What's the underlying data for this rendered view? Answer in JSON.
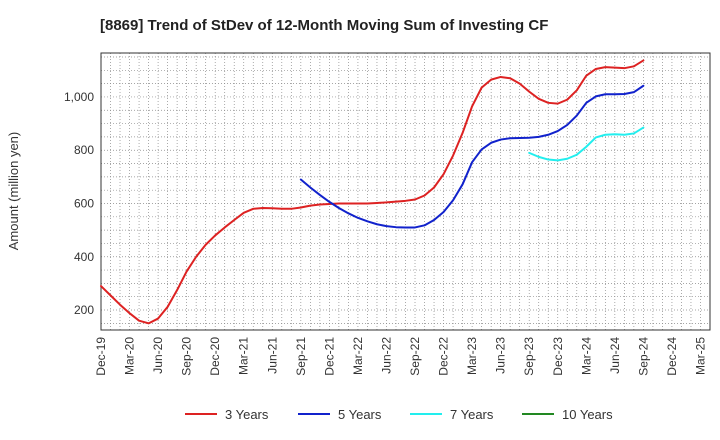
{
  "chart_data": {
    "type": "line",
    "title": "[8869]  Trend of StDev of 12-Month Moving Sum of Investing CF",
    "xlabel": "",
    "ylabel": "Amount (million yen)",
    "ylim": [
      125,
      1165
    ],
    "yticks": [
      200,
      400,
      600,
      800,
      1000
    ],
    "ytick_labels": [
      "200",
      "400",
      "600",
      "800",
      "1,000"
    ],
    "xticks": [
      "2019-12",
      "2020-03",
      "2020-06",
      "2020-09",
      "2020-12",
      "2021-03",
      "2021-06",
      "2021-09",
      "2021-12",
      "2022-03",
      "2022-06",
      "2022-09",
      "2022-12",
      "2023-03",
      "2023-06",
      "2023-09",
      "2023-12",
      "2024-03",
      "2024-06",
      "2024-09",
      "2024-12",
      "2025-03"
    ],
    "xtick_labels": [
      "Dec-19",
      "Mar-20",
      "Jun-20",
      "Sep-20",
      "Dec-20",
      "Mar-21",
      "Jun-21",
      "Sep-21",
      "Dec-21",
      "Mar-22",
      "Jun-22",
      "Sep-22",
      "Dec-22",
      "Mar-23",
      "Jun-23",
      "Sep-23",
      "Dec-23",
      "Mar-24",
      "Jun-24",
      "Sep-24",
      "Dec-24",
      "Mar-25"
    ],
    "grid": true,
    "legend_position": "bottom",
    "series": [
      {
        "name": "3 Years",
        "color": "#dd2222",
        "x": [
          "2019-12",
          "2020-01",
          "2020-02",
          "2020-03",
          "2020-04",
          "2020-05",
          "2020-06",
          "2020-07",
          "2020-08",
          "2020-09",
          "2020-10",
          "2020-11",
          "2020-12",
          "2021-01",
          "2021-02",
          "2021-03",
          "2021-04",
          "2021-05",
          "2021-06",
          "2021-07",
          "2021-08",
          "2021-09",
          "2021-10",
          "2021-11",
          "2021-12",
          "2022-01",
          "2022-02",
          "2022-03",
          "2022-04",
          "2022-05",
          "2022-06",
          "2022-07",
          "2022-08",
          "2022-09",
          "2022-10",
          "2022-11",
          "2022-12",
          "2023-01",
          "2023-02",
          "2023-03",
          "2023-04",
          "2023-05",
          "2023-06",
          "2023-07",
          "2023-08",
          "2023-09",
          "2023-10",
          "2023-11",
          "2023-12",
          "2024-01",
          "2024-02",
          "2024-03",
          "2024-04",
          "2024-05",
          "2024-06",
          "2024-07",
          "2024-08",
          "2024-09"
        ],
        "values": [
          290,
          255,
          220,
          188,
          160,
          150,
          168,
          212,
          275,
          345,
          400,
          445,
          480,
          510,
          538,
          565,
          580,
          583,
          582,
          580,
          580,
          585,
          592,
          596,
          598,
          600,
          600,
          600,
          600,
          602,
          604,
          607,
          610,
          615,
          630,
          660,
          710,
          780,
          865,
          965,
          1035,
          1065,
          1075,
          1070,
          1050,
          1020,
          993,
          978,
          975,
          990,
          1025,
          1080,
          1105,
          1112,
          1110,
          1108,
          1115,
          1137
        ]
      },
      {
        "name": "5 Years",
        "color": "#1122cc",
        "x": [
          "2021-09",
          "2021-10",
          "2021-11",
          "2021-12",
          "2022-01",
          "2022-02",
          "2022-03",
          "2022-04",
          "2022-05",
          "2022-06",
          "2022-07",
          "2022-08",
          "2022-09",
          "2022-10",
          "2022-11",
          "2022-12",
          "2023-01",
          "2023-02",
          "2023-03",
          "2023-04",
          "2023-05",
          "2023-06",
          "2023-07",
          "2023-08",
          "2023-09",
          "2023-10",
          "2023-11",
          "2023-12",
          "2024-01",
          "2024-02",
          "2024-03",
          "2024-04",
          "2024-05",
          "2024-06",
          "2024-07",
          "2024-08",
          "2024-09"
        ],
        "values": [
          690,
          660,
          632,
          606,
          583,
          563,
          546,
          533,
          522,
          515,
          511,
          510,
          510,
          518,
          538,
          568,
          612,
          672,
          755,
          803,
          828,
          840,
          845,
          846,
          847,
          850,
          858,
          872,
          895,
          930,
          978,
          1002,
          1010,
          1010,
          1011,
          1018,
          1042
        ]
      },
      {
        "name": "7 Years",
        "color": "#22eeee",
        "x": [
          "2023-09",
          "2023-10",
          "2023-11",
          "2023-12",
          "2024-01",
          "2024-02",
          "2024-03",
          "2024-04",
          "2024-05",
          "2024-06",
          "2024-07",
          "2024-08",
          "2024-09"
        ],
        "values": [
          790,
          775,
          765,
          762,
          768,
          783,
          813,
          848,
          858,
          860,
          858,
          863,
          885
        ]
      },
      {
        "name": "10 Years",
        "color": "#228822",
        "x": [],
        "values": []
      }
    ]
  }
}
